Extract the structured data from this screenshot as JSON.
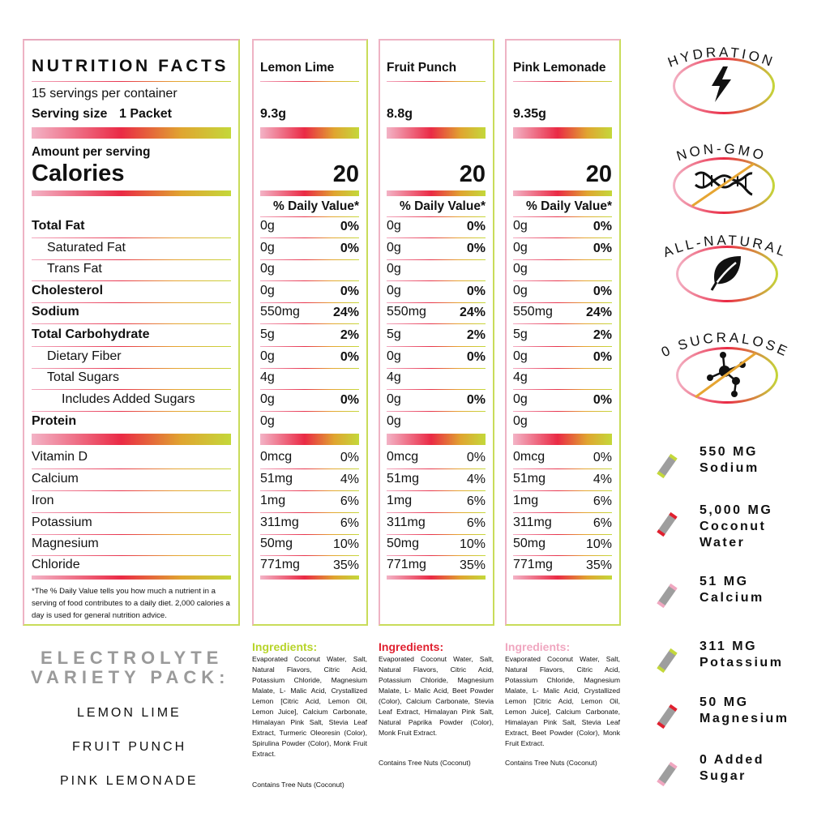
{
  "facts": {
    "title": "NUTRITION FACTS",
    "servings": "15 servings per container",
    "serving_size_label": "Serving size",
    "serving_size_value": "1 Packet",
    "amount_per_serving": "Amount per serving",
    "calories_label": "Calories",
    "rows": [
      {
        "label": "Total Fat",
        "bold": true
      },
      {
        "label": "Saturated Fat",
        "indent": 1
      },
      {
        "label": "Trans Fat",
        "indent": 1
      },
      {
        "label": "Cholesterol",
        "bold": true
      },
      {
        "label": "Sodium",
        "bold": true
      },
      {
        "label": "Total Carbohydrate",
        "bold": true
      },
      {
        "label": "Dietary Fiber",
        "indent": 1
      },
      {
        "label": "Total Sugars",
        "indent": 1
      },
      {
        "label": "Includes Added Sugars",
        "indent": 2
      },
      {
        "label": "Protein",
        "bold": true
      }
    ],
    "vitamins": [
      "Vitamin D",
      "Calcium",
      "Iron",
      "Potassium",
      "Magnesium",
      "Chloride"
    ],
    "footnote": "*The % Daily Value tells you how much a nutrient in a serving of food contributes to a daily diet. 2,000 calories a day is used for general nutrition advice."
  },
  "flavors": [
    {
      "name": "Lemon Lime",
      "serving": "9.3g",
      "calories": "20",
      "dv_header": "% Daily Value*",
      "amounts": [
        "0g",
        "0g",
        "0g",
        "0g",
        "550mg",
        "5g",
        "0g",
        "4g",
        "0g",
        "0g"
      ],
      "dvs": [
        "0%",
        "0%",
        "",
        "0%",
        "24%",
        "2%",
        "0%",
        "",
        "0%",
        ""
      ],
      "vit_amounts": [
        "0mcg",
        "51mg",
        "1mg",
        "311mg",
        "50mg",
        "771mg"
      ],
      "vit_dvs": [
        "0%",
        "4%",
        "6%",
        "6%",
        "10%",
        "35%"
      ],
      "ingredients_title": "Ingredients:",
      "ingredients_color": "#b7d42a",
      "ingredients": "Evaporated Coconut Water, Salt, Natural Flavors, Citric Acid, Potassium Chloride, Magnesium Malate, L- Malic Acid, Crystallized Lemon [Citric Acid, Lemon Oil, Lemon Juice], Calcium Carbonate, Himalayan Pink Salt, Stevia Leaf Extract, Turmeric Oleoresin (Color), Spirulina Powder (Color), Monk Fruit Extract.",
      "contains": "Contains Tree Nuts (Coconut)",
      "border_color": "#eeb3c4"
    },
    {
      "name": "Fruit Punch",
      "serving": "8.8g",
      "calories": "20",
      "dv_header": "% Daily Value*",
      "amounts": [
        "0g",
        "0g",
        "0g",
        "0g",
        "550mg",
        "5g",
        "0g",
        "4g",
        "0g",
        "0g"
      ],
      "dvs": [
        "0%",
        "0%",
        "",
        "0%",
        "24%",
        "2%",
        "0%",
        "",
        "0%",
        ""
      ],
      "vit_amounts": [
        "0mcg",
        "51mg",
        "1mg",
        "311mg",
        "50mg",
        "771mg"
      ],
      "vit_dvs": [
        "0%",
        "4%",
        "6%",
        "6%",
        "10%",
        "35%"
      ],
      "ingredients_title": "Ingredients:",
      "ingredients_color": "#e0202f",
      "ingredients": "Evaporated Coconut Water, Salt, Natural Flavors, Citric Acid, Potassium Chloride, Magnesium Malate, L- Malic Acid, Beet Powder (Color), Calcium Carbonate, Stevia Leaf Extract, Himalayan Pink Salt, Natural Paprika Powder (Color), Monk Fruit Extract.",
      "contains": "Contains Tree Nuts (Coconut)",
      "border_color": "#eeb3c4"
    },
    {
      "name": "Pink Lemonade",
      "serving": "9.35g",
      "calories": "20",
      "dv_header": "% Daily Value*",
      "amounts": [
        "0g",
        "0g",
        "0g",
        "0g",
        "550mg",
        "5g",
        "0g",
        "4g",
        "0g",
        "0g"
      ],
      "dvs": [
        "0%",
        "0%",
        "",
        "0%",
        "24%",
        "2%",
        "0%",
        "",
        "0%",
        ""
      ],
      "vit_amounts": [
        "0mcg",
        "51mg",
        "1mg",
        "311mg",
        "50mg",
        "771mg"
      ],
      "vit_dvs": [
        "0%",
        "4%",
        "6%",
        "6%",
        "10%",
        "35%"
      ],
      "ingredients_title": "Ingredients:",
      "ingredients_color": "#f0a7c0",
      "ingredients": "Evaporated Coconut Water, Salt, Natural Flavors, Citric Acid, Potassium Chloride, Magnesium Malate, L- Malic Acid, Crystallized Lemon [Citric Acid, Lemon Oil, Lemon Juice], Calcium Carbonate, Himalayan Pink Salt, Stevia Leaf Extract, Beet Powder (Color), Monk Fruit Extract.",
      "contains": "Contains Tree Nuts (Coconut)",
      "border_color": "#eeb3c4"
    }
  ],
  "variety": {
    "title_line1": "ELECTROLYTE",
    "title_line2": "VARIETY PACK:",
    "items": [
      "LEMON LIME",
      "FRUIT PUNCH",
      "PINK LEMONADE"
    ]
  },
  "badges": [
    {
      "title": "HYDRATION",
      "icon": "lightning-bolt-icon"
    },
    {
      "title": "NON-GMO",
      "icon": "dna-crossed-icon"
    },
    {
      "title": "ALL-NATURAL",
      "icon": "leaf-icon"
    },
    {
      "title": "0 SUCRALOSE",
      "icon": "molecule-crossed-icon"
    }
  ],
  "stats": [
    {
      "line1": "550 MG",
      "line2": "Sodium",
      "stick_color": "#c4d83a"
    },
    {
      "line1": "5,000 MG",
      "line2": "Coconut",
      "line3": "Water",
      "stick_color": "#e0202f"
    },
    {
      "line1": "51 MG",
      "line2": "Calcium",
      "stick_color": "#f0a7c0"
    },
    {
      "line1": "311 MG",
      "line2": "Potassium",
      "stick_color": "#c4d83a"
    },
    {
      "line1": "50 MG",
      "line2": "Magnesium",
      "stick_color": "#e0202f"
    },
    {
      "line1": "0 Added",
      "line2": "Sugar",
      "stick_color": "#f0a7c0"
    }
  ],
  "colors": {
    "lime": "#c4d83a",
    "red": "#e0202f",
    "pink": "#f0a7c0",
    "panel_border_main": "#c9dc5a"
  }
}
